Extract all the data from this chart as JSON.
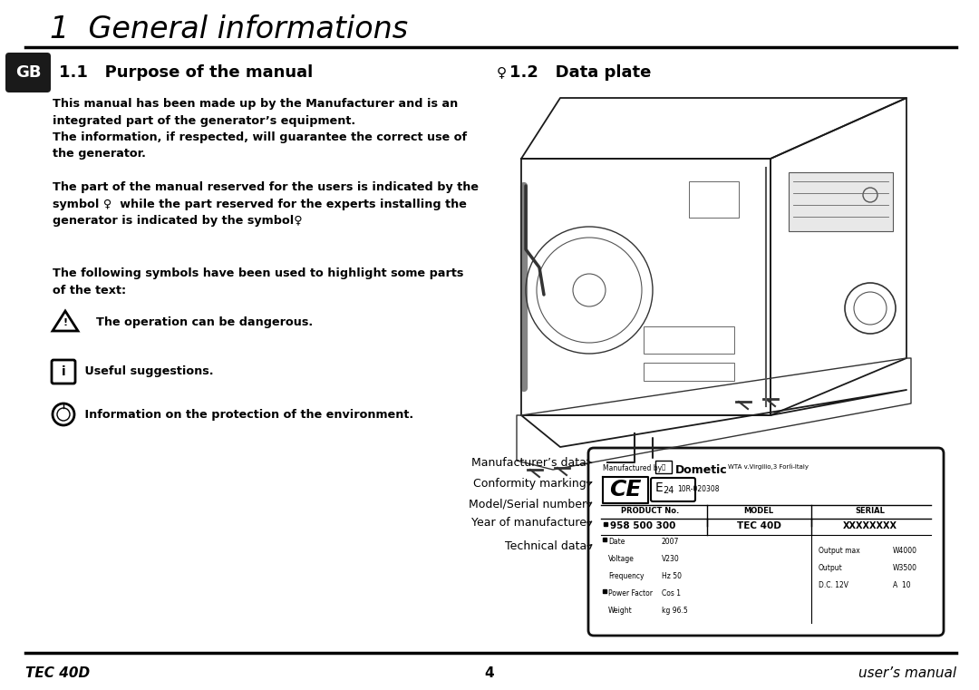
{
  "title": "1  General informations",
  "bg_color": "#ffffff",
  "footer_left": "TEC 40D",
  "footer_center": "4",
  "footer_right": "user’s manual",
  "section_left_title": "1.1   Purpose of the manual",
  "section_right_title": "1.2   Data plate",
  "gb_label": "GB",
  "gb_bg": "#1a1a1a",
  "para1": "This manual has been made up by the Manufacturer and is an\nintegrated part of the generator’s equipment.\nThe information, if respected, will guarantee the correct use of\nthe generator.",
  "para2": "The part of the manual reserved for the users is indicated by the\nsymbol ♀  while the part reserved for the experts installing the\ngenerator is indicated by the symbol♀",
  "para3": "The following symbols have been used to highlight some parts\nof the text:",
  "warn_text": "The operation can be dangerous.",
  "info_text": "Useful suggestions.",
  "env_text": "Information on the protection of the environment.",
  "data_plate_labels": [
    "Manufacturer’s data",
    "Conformity marking",
    "Model/Serial number",
    "Year of manufacture",
    "Technical data"
  ],
  "plate_mfr": "Manufactured by",
  "plate_dometic": "Dometic",
  "plate_dometic_addr": "WTA v.Virgilio,3 Forlì-Italy",
  "plate_e24": "10R-020308",
  "plate_product_no_label": "PRODUCT No.",
  "plate_model_label": "MODEL",
  "plate_serial_label": "SERIAL",
  "plate_product_no": "958 500 300",
  "plate_model": "TEC 40D",
  "plate_serial": "XXXXXXXX",
  "tech_left_labels": [
    "Date",
    "Voltage",
    "Frequency",
    "Power Factor",
    "Weight"
  ],
  "tech_left_values": [
    "2007",
    "V230",
    "Hz 50",
    "Cos 1",
    "kg 96.5"
  ],
  "tech_right_labels": [
    "Output max",
    "Output",
    "D.C. 12V"
  ],
  "tech_right_values": [
    "W4000",
    "W3500",
    "A  10"
  ]
}
